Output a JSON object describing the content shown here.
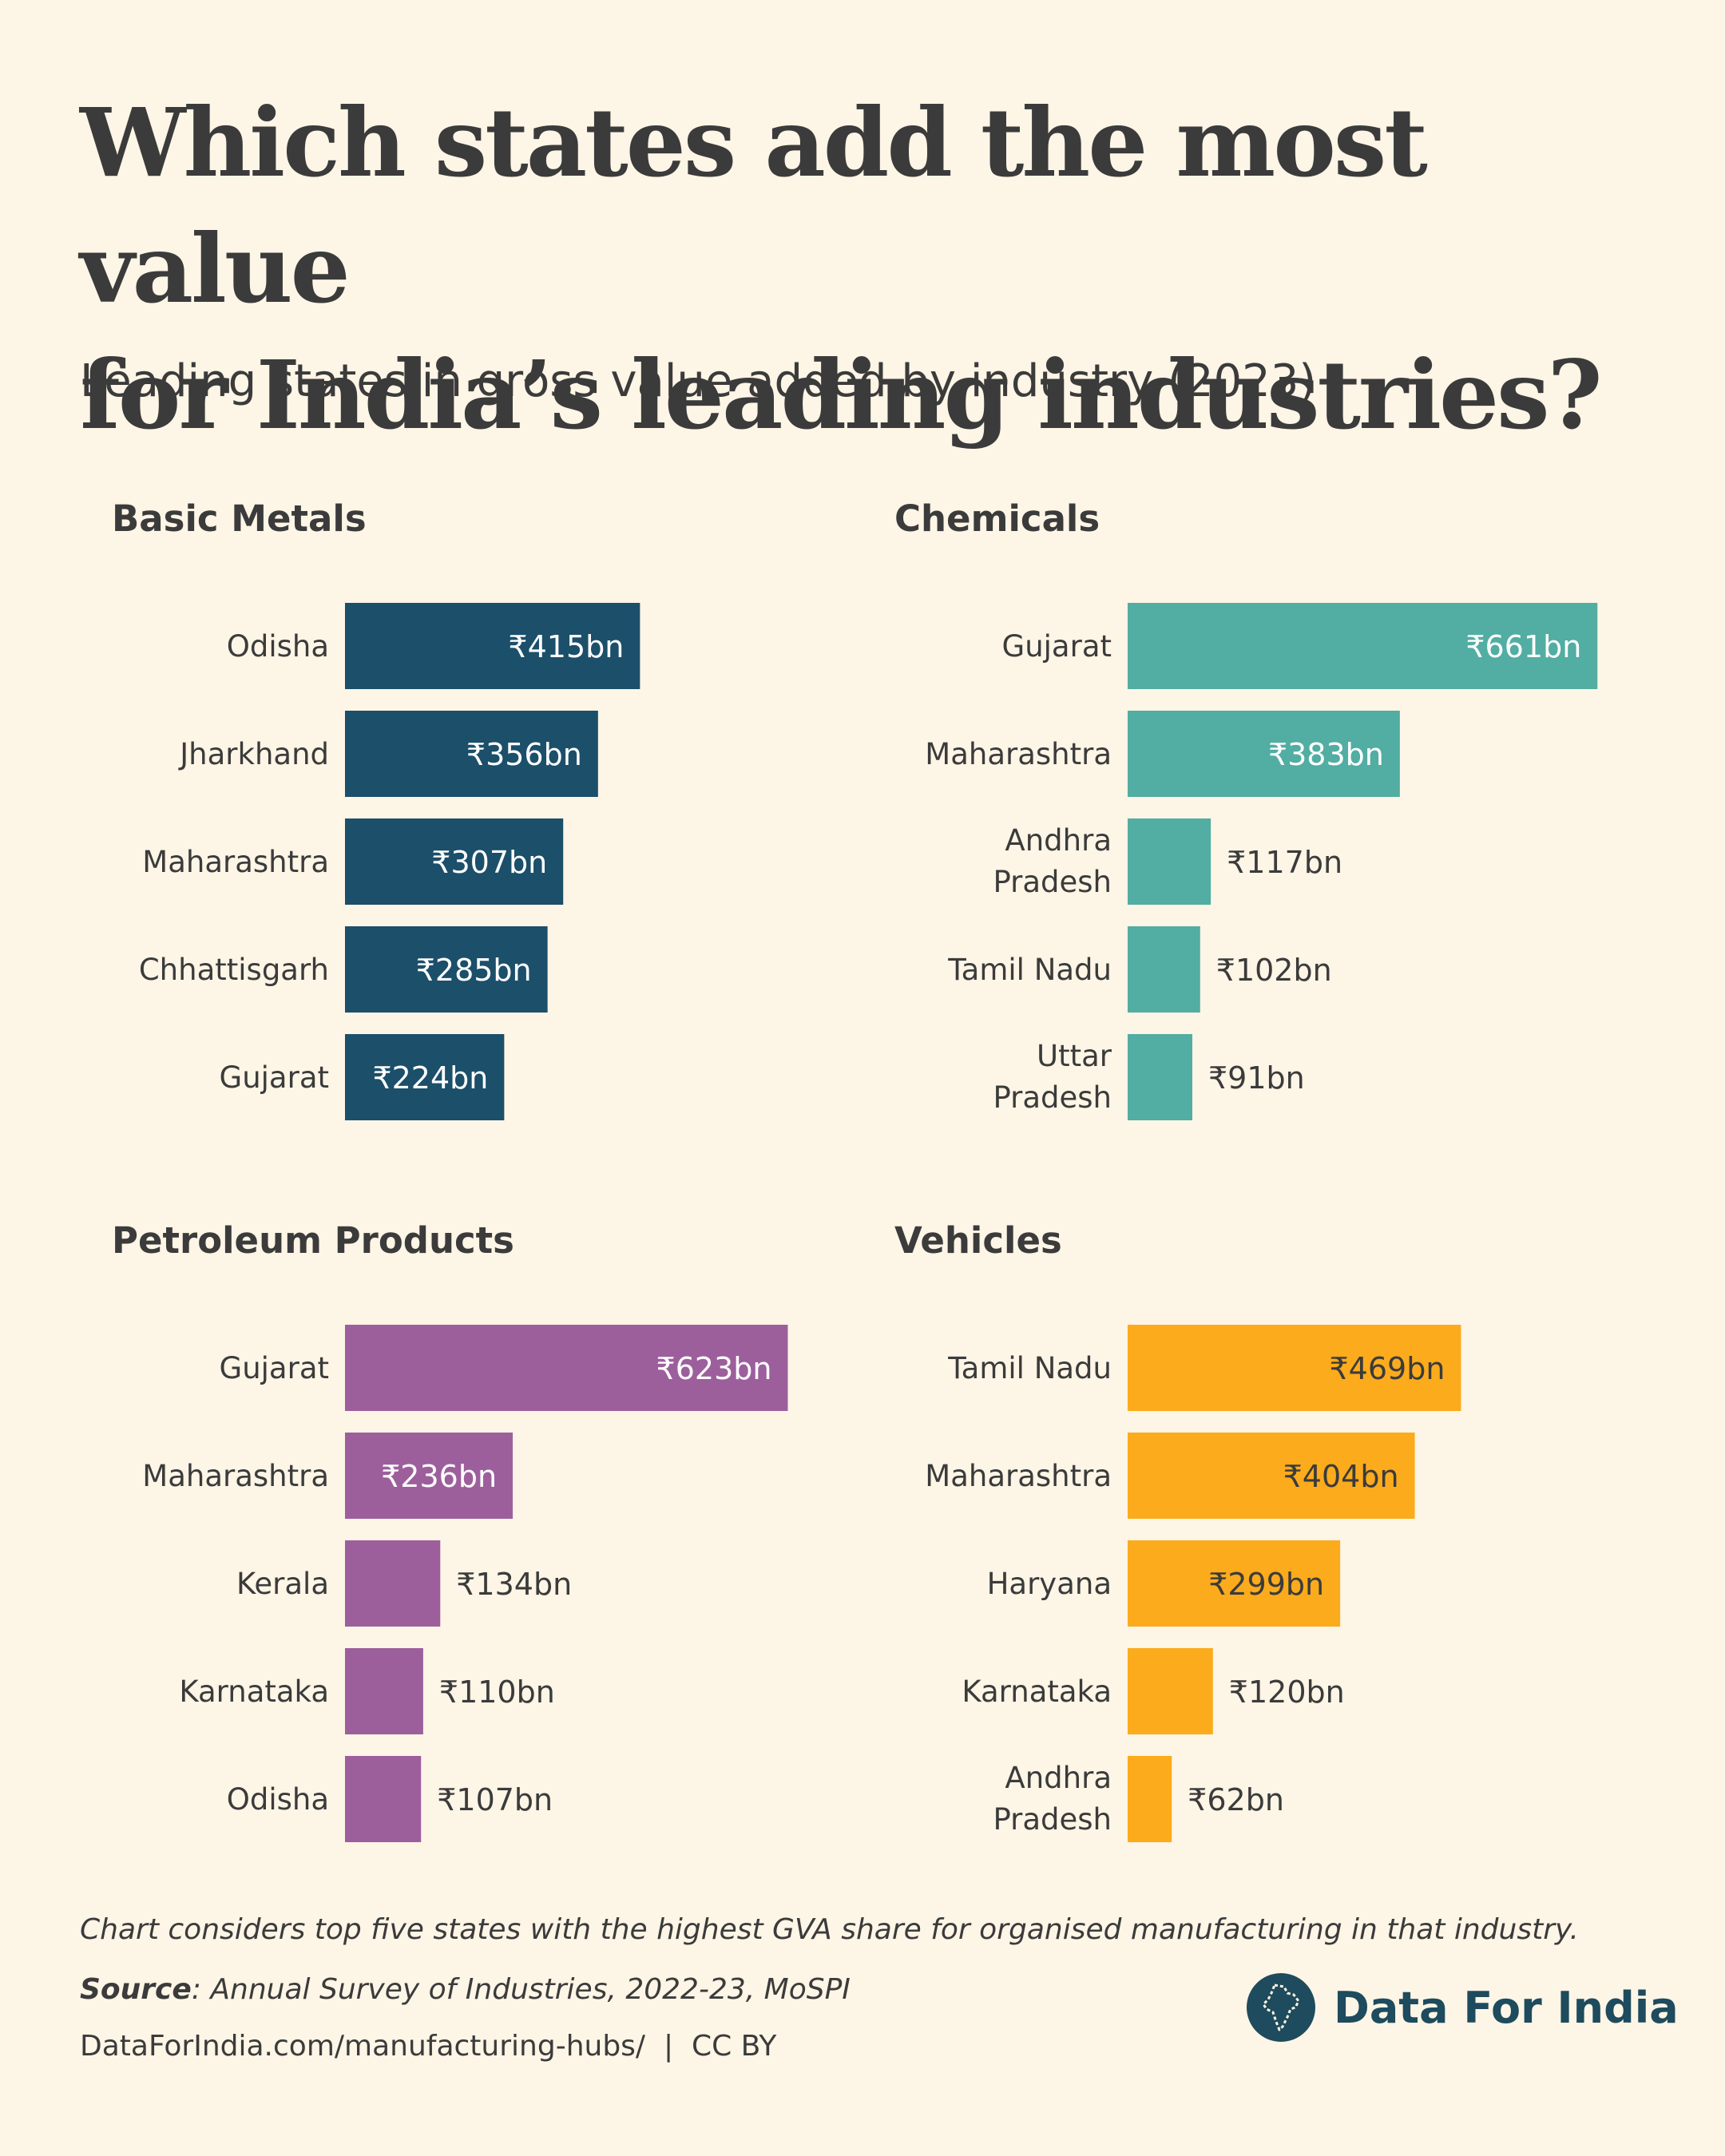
{
  "title_line1": "Which states add the most value",
  "title_line2": "for India’s leading industries?",
  "subtitle": "Leading states in gross value added by industry (2023)",
  "chart_data": [
    {
      "type": "bar",
      "title": "Basic Metals",
      "color": "#1b4f6a",
      "categories": [
        "Odisha",
        "Jharkhand",
        "Maharashtra",
        "Chhattisgarh",
        "Gujarat"
      ],
      "values": [
        415,
        356,
        307,
        285,
        224
      ],
      "value_labels": [
        "₹415bn",
        "₹356bn",
        "₹307bn",
        "₹285bn",
        "₹224bn"
      ]
    },
    {
      "type": "bar",
      "title": "Chemicals",
      "color": "#52ada2",
      "categories": [
        "Gujarat",
        "Maharashtra",
        "Andhra Pradesh",
        "Tamil Nadu",
        "Uttar Pradesh"
      ],
      "values": [
        661,
        383,
        117,
        102,
        91
      ],
      "value_labels": [
        "₹661bn",
        "₹383bn",
        "₹117bn",
        "₹102bn",
        "₹91bn"
      ]
    },
    {
      "type": "bar",
      "title": "Petroleum Products",
      "color": "#9c5f9c",
      "categories": [
        "Gujarat",
        "Maharashtra",
        "Kerala",
        "Karnataka",
        "Odisha"
      ],
      "values": [
        623,
        236,
        134,
        110,
        107
      ],
      "value_labels": [
        "₹623bn",
        "₹236bn",
        "₹134bn",
        "₹110bn",
        "₹107bn"
      ]
    },
    {
      "type": "bar",
      "title": "Vehicles",
      "color": "#fbab1c",
      "categories": [
        "Tamil Nadu",
        "Maharashtra",
        "Haryana",
        "Karnataka",
        "Andhra Pradesh"
      ],
      "values": [
        469,
        404,
        299,
        120,
        62
      ],
      "value_labels": [
        "₹469bn",
        "₹404bn",
        "₹299bn",
        "₹120bn",
        "₹62bn"
      ]
    }
  ],
  "footnote": "Chart considers top five states with the highest GVA share for organised manufacturing in that industry.",
  "source_label": "Source",
  "source_text": ": Annual Survey of Industries, 2022-23, MoSPI",
  "url": "DataForIndia.com/manufacturing-hubs/  |  CC BY",
  "brand": {
    "name": "Data For India",
    "logo_icon": "india-map-logo-icon",
    "color": "#1e4b5d"
  }
}
